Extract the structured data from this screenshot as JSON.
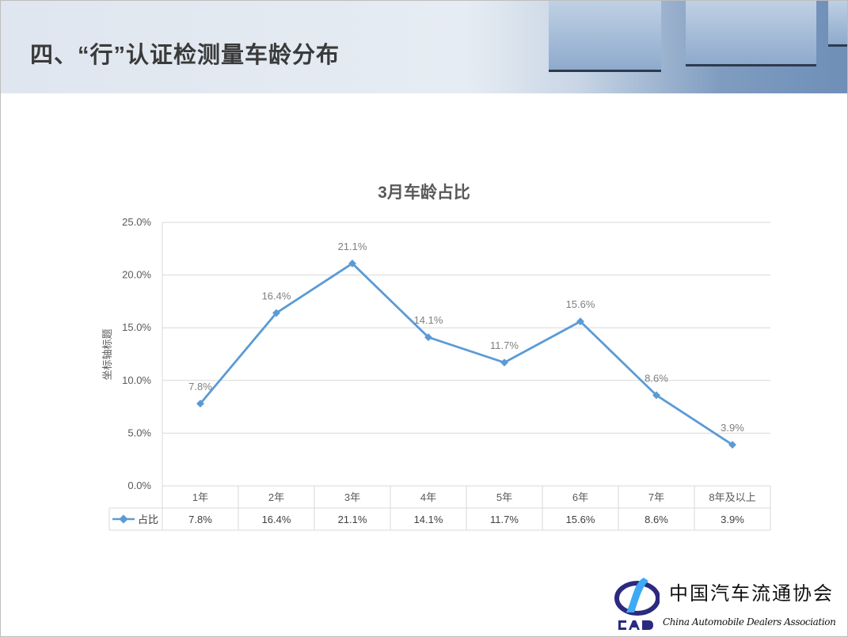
{
  "slide": {
    "title": "四、“行”认证检测量车龄分布"
  },
  "logo": {
    "name_cn": "中国汽车流通协会",
    "name_en": "China Automobile Dealers Association",
    "abbr": "CADA"
  },
  "chart_data": {
    "type": "line",
    "title": "3月车龄占比",
    "ylabel": "坐标轴标题",
    "xlabel": "",
    "categories": [
      "1年",
      "2年",
      "3年",
      "4年",
      "5年",
      "6年",
      "7年",
      "8年及以上"
    ],
    "series": [
      {
        "name": "占比",
        "values": [
          7.8,
          16.4,
          21.1,
          14.1,
          11.7,
          15.6,
          8.6,
          3.9
        ],
        "labels": [
          "7.8%",
          "16.4%",
          "21.1%",
          "14.1%",
          "11.7%",
          "15.6%",
          "8.6%",
          "3.9%"
        ],
        "color": "#5b9bd5"
      }
    ],
    "ylim": [
      0,
      25
    ],
    "yticks": [
      "0.0%",
      "5.0%",
      "10.0%",
      "15.0%",
      "20.0%",
      "25.0%"
    ],
    "grid": true,
    "legend": "data-table",
    "data_table": true
  }
}
